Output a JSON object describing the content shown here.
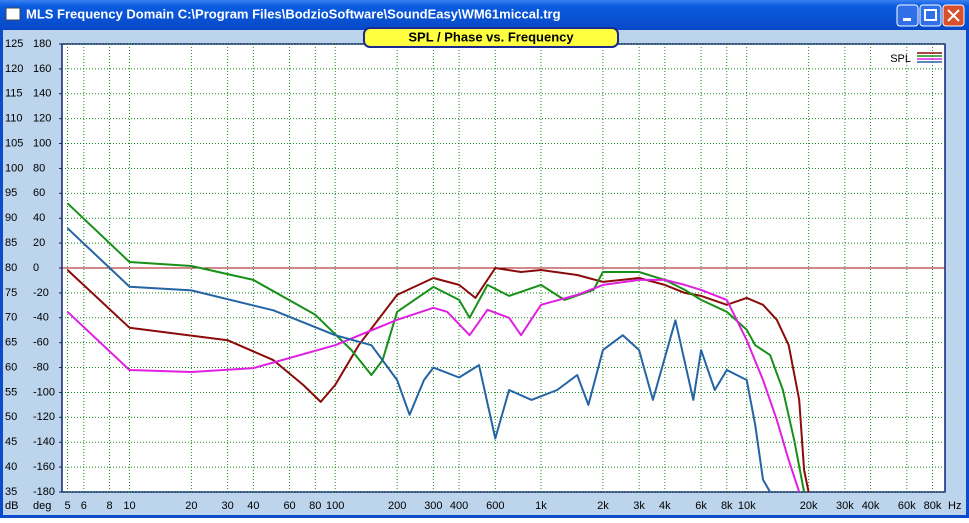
{
  "window_title": "MLS Frequency Domain  C:\\Program Files\\BodzioSoftware\\SoundEasy\\WM61miccal.trg",
  "chart_data": {
    "type": "line",
    "title": "SPL / Phase vs. Frequency",
    "x_unit": "Hz",
    "y_unit": "dB",
    "y2_unit": "deg",
    "log_x": true,
    "grid": true,
    "xlim": [
      4.7,
      92000
    ],
    "xticks": [
      5,
      6,
      8,
      10,
      20,
      30,
      40,
      60,
      80,
      100,
      200,
      300,
      400,
      600,
      {
        "value": 1000,
        "label": "1k"
      },
      {
        "value": 2000,
        "label": "2k"
      },
      {
        "value": 3000,
        "label": "3k"
      },
      {
        "value": 4000,
        "label": "4k"
      },
      {
        "value": 6000,
        "label": "6k"
      },
      {
        "value": 8000,
        "label": "8k"
      },
      {
        "value": 10000,
        "label": "10k"
      },
      {
        "value": 20000,
        "label": "20k"
      },
      {
        "value": 30000,
        "label": "30k"
      },
      {
        "value": 40000,
        "label": "40k"
      },
      {
        "value": 60000,
        "label": "60k"
      },
      {
        "value": 80000,
        "label": "80k"
      }
    ],
    "ylim": [
      35,
      125
    ],
    "yticks": [
      35,
      40,
      45,
      50,
      55,
      60,
      65,
      70,
      75,
      80,
      85,
      90,
      95,
      100,
      105,
      110,
      115,
      120,
      125
    ],
    "y2lim": [
      -180,
      180
    ],
    "y2ticks": [
      -180,
      -160,
      -140,
      -120,
      -100,
      -80,
      -60,
      -40,
      -20,
      0,
      20,
      40,
      60,
      80,
      100,
      120,
      140,
      160,
      180
    ],
    "reference_line": {
      "value": 80,
      "color": "#a01010"
    },
    "legend": {
      "label": "SPL",
      "position": "upper right"
    },
    "series": [
      {
        "color": "#8b0a0a",
        "x": [
          5,
          10,
          30,
          50,
          70,
          85,
          100,
          130,
          200,
          300,
          400,
          480,
          600,
          800,
          1000,
          1500,
          2000,
          3000,
          4000,
          5000,
          6000,
          8000,
          10000,
          12000,
          14000,
          16000,
          18000,
          19000,
          20000
        ],
        "values": [
          79.6,
          68,
          65.5,
          61.5,
          56.5,
          53.1,
          56.5,
          64.5,
          74.6,
          78,
          76.6,
          74,
          80,
          79.2,
          79.6,
          78.6,
          77.2,
          78,
          76.6,
          75,
          74.4,
          72.6,
          74,
          72.6,
          69.6,
          64.5,
          53.5,
          39.4,
          35
        ]
      },
      {
        "color": "#189018",
        "x": [
          5,
          10,
          20,
          40,
          80,
          120,
          150,
          170,
          200,
          300,
          400,
          450,
          550,
          700,
          1000,
          1300,
          1800,
          2000,
          3000,
          4000,
          5000,
          6000,
          8000,
          10000,
          11000,
          13000,
          15000,
          17000,
          19000
        ],
        "values": [
          93,
          81.2,
          80.4,
          77.6,
          70.6,
          63.5,
          58.5,
          61.5,
          71.2,
          76.2,
          73.6,
          70,
          76.6,
          74.4,
          76.6,
          73.6,
          75.6,
          79.2,
          79.2,
          77.6,
          75.6,
          73.6,
          71.2,
          67.6,
          64.5,
          62.5,
          55.5,
          45.5,
          35
        ]
      },
      {
        "color": "#e020e0",
        "x": [
          5,
          10,
          20,
          40,
          100,
          200,
          300,
          350,
          450,
          550,
          700,
          800,
          1000,
          1500,
          2000,
          3000,
          4000,
          5000,
          6000,
          8000,
          10000,
          12000,
          14000,
          16000,
          18000
        ],
        "values": [
          71.2,
          59.5,
          59.1,
          59.9,
          64.5,
          69.6,
          72,
          71.2,
          66.5,
          71.6,
          70,
          66.5,
          72.6,
          74.6,
          76.6,
          77.6,
          77.6,
          76.6,
          75.6,
          73.6,
          65.5,
          57.5,
          49.5,
          41.4,
          35
        ]
      },
      {
        "color": "#2464a4",
        "axis": "y2",
        "x": [
          5,
          10,
          20,
          50,
          100,
          150,
          200,
          230,
          270,
          300,
          400,
          500,
          600,
          700,
          900,
          1200,
          1500,
          1700,
          2000,
          2500,
          3000,
          3500,
          4500,
          5500,
          6000,
          7000,
          8000,
          10000,
          11000,
          12000,
          13000
        ],
        "values": [
          32,
          -15,
          -18,
          -34,
          -54,
          -62,
          -90,
          -118,
          -90,
          -80,
          -88,
          -78,
          -137,
          -98,
          -106,
          -98,
          -86,
          -110,
          -66,
          -54,
          -66,
          -106,
          -42,
          -106,
          -66,
          -98,
          -82,
          -90,
          -126,
          -170,
          -180
        ]
      }
    ]
  }
}
